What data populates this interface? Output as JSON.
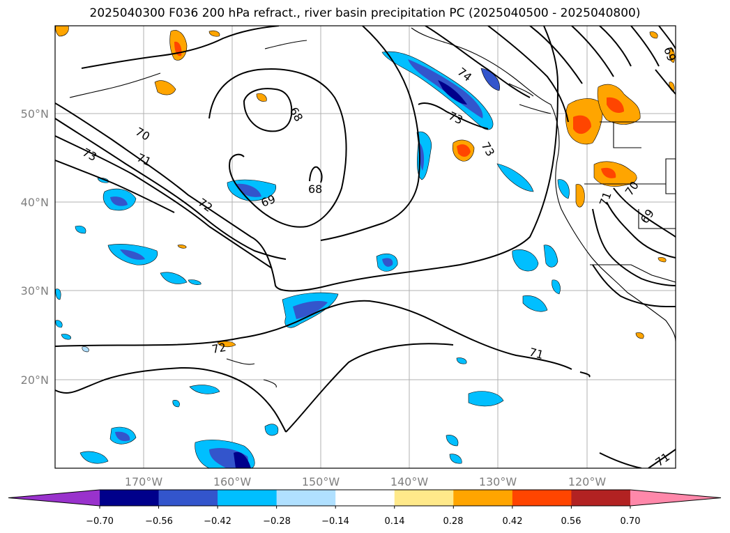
{
  "title": "2025040300 F036 200 hPa refract., river basin precipitation PC (2025040500 - 2025040800)",
  "map": {
    "lat_labels": [
      "50°N",
      "40°N",
      "30°N",
      "20°N"
    ],
    "lon_labels": [
      "170°W",
      "160°W",
      "150°W",
      "140°W",
      "130°W",
      "120°W"
    ],
    "grid": true,
    "contour_labels": [
      "70",
      "71",
      "73",
      "72",
      "68",
      "68",
      "69",
      "73",
      "74",
      "73",
      "72",
      "71",
      "71",
      "70",
      "69",
      "69",
      "71"
    ]
  },
  "colorbar": {
    "tick_labels": [
      "−0.70",
      "−0.56",
      "−0.42",
      "−0.28",
      "−0.14",
      "0.14",
      "0.28",
      "0.42",
      "0.56",
      "0.70"
    ],
    "colors": [
      "#9932cc",
      "#00008b",
      "#3355cc",
      "#00bfff",
      "#b0e0ff",
      "#ffffff",
      "#ffe98a",
      "#ffa500",
      "#ff4500",
      "#b22222",
      "#ff88aa"
    ]
  }
}
